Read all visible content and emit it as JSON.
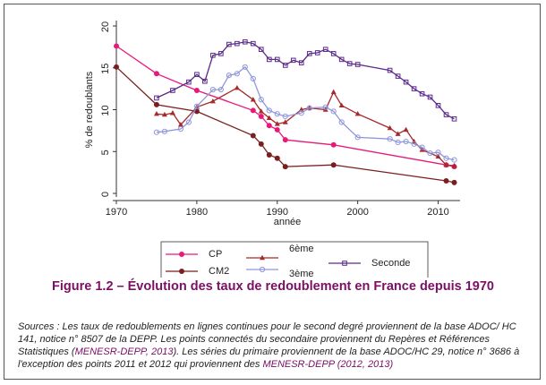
{
  "chart_data": {
    "type": "line",
    "xlabel": "année",
    "ylabel": "% de redoublants",
    "xlim": [
      1970,
      2012.5
    ],
    "ylim": [
      0,
      20
    ],
    "xticks": [
      1970,
      1980,
      1990,
      2000,
      2010
    ],
    "yticks": [
      0,
      5,
      10,
      15,
      20
    ],
    "grid": false,
    "legend_position": "bottom",
    "series": [
      {
        "name": "CP",
        "color": "#e8197a",
        "marker": "dot",
        "x": [
          1970,
          1975,
          1980,
          1987,
          1988,
          1989,
          1990,
          1991,
          1997,
          2011,
          2012
        ],
        "y": [
          17.6,
          14.3,
          12.3,
          9.9,
          9.2,
          8.1,
          7.6,
          6.4,
          5.8,
          3.4,
          3.2
        ]
      },
      {
        "name": "6ème",
        "color": "#a52a2a",
        "marker": "triangle",
        "x": [
          1975,
          1976,
          1977,
          1978,
          1980,
          1982,
          1985,
          1987,
          1988,
          1989,
          1990,
          1991,
          1993,
          1994,
          1996,
          1997,
          1998,
          2000,
          2004,
          2005,
          2006,
          2007,
          2008,
          2010,
          2011,
          2012
        ],
        "y": [
          9.5,
          9.4,
          9.6,
          8.2,
          10.3,
          11.0,
          12.6,
          11.2,
          9.8,
          9.0,
          8.3,
          8.5,
          10.0,
          10.2,
          10.0,
          12.1,
          10.5,
          9.5,
          7.8,
          7.1,
          7.6,
          6.2,
          5.2,
          4.4,
          3.4,
          3.3
        ]
      },
      {
        "name": "CM2",
        "color": "#7a1f1f",
        "marker": "dot",
        "x": [
          1970,
          1975,
          1980,
          1987,
          1988,
          1989,
          1990,
          1991,
          1997,
          2011,
          2012
        ],
        "y": [
          15.1,
          10.6,
          9.8,
          6.9,
          5.9,
          4.6,
          4.2,
          3.2,
          3.4,
          1.5,
          1.3
        ]
      },
      {
        "name": "3ème",
        "color": "#8f96dc",
        "marker": "circle",
        "x": [
          1975,
          1976,
          1978,
          1979,
          1980,
          1982,
          1983,
          1984,
          1985,
          1986,
          1987,
          1988,
          1989,
          1990,
          1991,
          1993,
          1994,
          1996,
          1997,
          1998,
          2000,
          2004,
          2005,
          2006,
          2007,
          2008,
          2009,
          2010,
          2011,
          2012
        ],
        "y": [
          7.3,
          7.4,
          7.7,
          8.5,
          10.4,
          12.4,
          12.4,
          14.1,
          14.3,
          15.1,
          13.7,
          11.2,
          9.9,
          9.5,
          9.2,
          9.6,
          10.2,
          10.3,
          9.8,
          8.5,
          6.7,
          6.5,
          6.1,
          6.2,
          5.9,
          5.5,
          4.8,
          4.9,
          4.2,
          4.0
        ]
      },
      {
        "name": "Seconde",
        "color": "#5a2a8a",
        "marker": "square",
        "x": [
          1975,
          1977,
          1979,
          1980,
          1981,
          1982,
          1983,
          1984,
          1985,
          1986,
          1987,
          1988,
          1989,
          1990,
          1991,
          1992,
          1993,
          1994,
          1995,
          1996,
          1997,
          1998,
          1999,
          2000,
          2004,
          2005,
          2006,
          2007,
          2008,
          2009,
          2010,
          2011,
          2012
        ],
        "y": [
          11.4,
          12.3,
          13.3,
          14.2,
          13.4,
          16.5,
          16.7,
          17.8,
          17.9,
          18.1,
          17.9,
          17.2,
          16.0,
          16.0,
          15.3,
          15.9,
          15.6,
          16.7,
          16.8,
          17.2,
          16.7,
          16.0,
          15.5,
          15.4,
          14.7,
          14.0,
          13.3,
          12.5,
          11.9,
          11.5,
          10.5,
          9.4,
          8.9
        ]
      }
    ]
  },
  "caption": "Figure 1.2 – Évolution des taux de redoublement en France depuis 1970",
  "sources": {
    "part1": "Sources : Les taux de redoublements en lignes continues pour le second degré proviennent de la base ADOC/ HC 141, notice n° 8507 de la DEPP. Les points connectés du secondaire proviennent du Repères et Références Statistiques (",
    "ref1": "MENESR-DEPP, 2013",
    "part2": "). Les séries du primaire proviennent de la base ADOC/HC 29, notice n° 3686 à l'exception des points 2011 et 2012 qui proviennent des ",
    "ref2": "MENESR-DEPP (2012, 2013)"
  }
}
